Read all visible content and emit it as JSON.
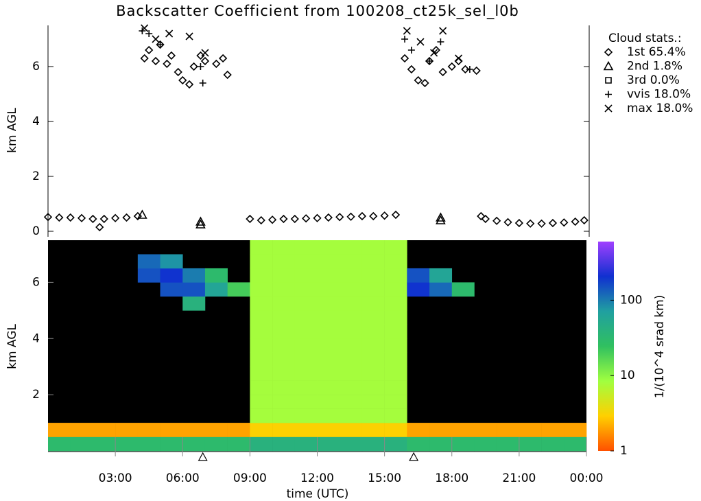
{
  "chart_data": [
    {
      "type": "scatter",
      "title": "Backscatter Coefficient from 100208_ct25k_sel_l0b",
      "ylabel": "km AGL",
      "legend_title": "Cloud stats.:",
      "xlim": [
        0,
        24
      ],
      "ylim": [
        0,
        7.5
      ],
      "yticks": [
        0,
        2,
        4,
        6
      ],
      "series": [
        {
          "name": "1st 65.4%",
          "marker": "diamond",
          "color": "#000000",
          "x": [
            0,
            0.5,
            1,
            1.5,
            2,
            2.3,
            2.5,
            3,
            3.5,
            4,
            4.3,
            4.5,
            4.8,
            5.0,
            5.3,
            5.5,
            5.8,
            6.0,
            6.3,
            6.5,
            6.8,
            7.0,
            7.5,
            7.8,
            8.0,
            9,
            9.5,
            10,
            10.5,
            11,
            11.5,
            12,
            12.5,
            13,
            13.5,
            14,
            14.5,
            15,
            15.5,
            15.9,
            16.2,
            16.5,
            16.8,
            17.0,
            17.3,
            17.6,
            18.0,
            18.3,
            18.6,
            19.1,
            19.3,
            19.5,
            20,
            20.5,
            21,
            21.5,
            22,
            22.5,
            23,
            23.5,
            23.9
          ],
          "values": [
            0.52,
            0.5,
            0.5,
            0.48,
            0.45,
            0.15,
            0.45,
            0.48,
            0.5,
            0.55,
            6.3,
            6.6,
            6.2,
            6.8,
            6.1,
            6.4,
            5.8,
            5.5,
            5.35,
            6.0,
            6.4,
            6.2,
            6.1,
            6.3,
            5.7,
            0.45,
            0.4,
            0.42,
            0.45,
            0.45,
            0.47,
            0.48,
            0.5,
            0.52,
            0.53,
            0.55,
            0.55,
            0.57,
            0.6,
            6.3,
            5.9,
            5.5,
            5.4,
            6.2,
            6.6,
            5.8,
            6.0,
            6.2,
            5.9,
            5.85,
            0.55,
            0.45,
            0.38,
            0.33,
            0.3,
            0.28,
            0.28,
            0.3,
            0.32,
            0.35,
            0.4
          ]
        },
        {
          "name": "2nd  1.8%",
          "marker": "triangle",
          "color": "#000000",
          "x": [
            4.2,
            6.8,
            6.8,
            17.5,
            17.5
          ],
          "values": [
            0.6,
            0.25,
            0.35,
            0.4,
            0.5
          ]
        },
        {
          "name": "3rd  0.0%",
          "marker": "square",
          "color": "#000000",
          "x": [],
          "values": []
        },
        {
          "name": "vvis 18.0%",
          "marker": "plus",
          "color": "#000000",
          "x": [
            4.2,
            4.5,
            5.0,
            6.8,
            6.9,
            15.9,
            16.2,
            17.0,
            17.5,
            18.8
          ],
          "values": [
            7.3,
            7.2,
            6.8,
            6.0,
            5.4,
            7.0,
            6.6,
            6.2,
            6.9,
            5.9
          ]
        },
        {
          "name": "max 18.0%",
          "marker": "cross",
          "color": "#000000",
          "x": [
            4.3,
            4.8,
            5.4,
            6.3,
            7.0,
            16.0,
            16.6,
            17.2,
            17.6,
            18.3
          ],
          "values": [
            7.4,
            7.0,
            7.2,
            7.1,
            6.5,
            7.3,
            6.9,
            6.5,
            7.3,
            6.3
          ]
        }
      ]
    },
    {
      "type": "heatmap",
      "xlabel": "time (UTC)",
      "ylabel": "km AGL",
      "xlim": [
        0,
        24
      ],
      "ylim": [
        0,
        7.5
      ],
      "xticks": [
        {
          "value": 3,
          "label": "03:00"
        },
        {
          "value": 6,
          "label": "06:00"
        },
        {
          "value": 9,
          "label": "09:00"
        },
        {
          "value": 12,
          "label": "12:00"
        },
        {
          "value": 15,
          "label": "15:00"
        },
        {
          "value": 18,
          "label": "18:00"
        },
        {
          "value": 21,
          "label": "21:00"
        },
        {
          "value": 24,
          "label": "00:00"
        }
      ],
      "yticks": [
        2,
        4,
        6
      ],
      "x_edges": [
        0,
        1,
        2,
        3,
        4,
        5,
        6,
        7,
        8,
        9,
        10,
        11,
        12,
        13,
        14,
        15,
        16,
        17,
        18,
        19,
        20,
        21,
        22,
        23,
        24
      ],
      "y_edges": [
        0,
        0.5,
        1,
        1.5,
        2,
        2.5,
        3,
        3.5,
        4,
        4.5,
        5,
        5.5,
        6,
        6.5,
        7,
        7.5
      ],
      "z": [
        [
          30,
          2,
          null,
          null,
          null,
          null,
          null,
          null,
          null,
          null,
          null,
          null,
          null,
          null,
          null
        ],
        [
          30,
          2,
          null,
          null,
          null,
          null,
          null,
          null,
          null,
          null,
          null,
          null,
          null,
          null,
          null
        ],
        [
          30,
          2,
          null,
          null,
          null,
          null,
          null,
          null,
          null,
          null,
          null,
          null,
          null,
          null,
          null
        ],
        [
          30,
          2,
          null,
          null,
          null,
          null,
          null,
          null,
          null,
          null,
          null,
          null,
          null,
          null,
          null
        ],
        [
          30,
          2,
          null,
          null,
          null,
          null,
          null,
          null,
          null,
          null,
          null,
          null,
          150,
          120,
          null
        ],
        [
          30,
          2,
          null,
          null,
          null,
          null,
          null,
          null,
          null,
          null,
          null,
          150,
          200,
          80,
          null
        ],
        [
          30,
          2,
          null,
          null,
          null,
          null,
          null,
          null,
          null,
          null,
          40,
          150,
          100,
          null,
          null
        ],
        [
          30,
          2,
          null,
          null,
          null,
          null,
          null,
          null,
          null,
          null,
          null,
          60,
          30,
          null,
          null
        ],
        [
          30,
          2,
          null,
          null,
          null,
          null,
          null,
          null,
          null,
          null,
          null,
          20,
          null,
          null,
          null
        ],
        [
          40,
          3,
          8,
          8,
          8,
          8,
          8,
          8,
          8,
          8,
          8,
          8,
          8,
          8,
          8
        ],
        [
          40,
          3,
          8,
          8,
          8,
          8,
          8,
          8,
          8,
          8,
          8,
          8,
          8,
          8,
          8
        ],
        [
          40,
          3,
          8,
          8,
          8,
          8,
          8,
          8,
          8,
          8,
          8,
          8,
          8,
          8,
          8
        ],
        [
          40,
          3,
          8,
          8,
          8,
          8,
          8,
          8,
          8,
          8,
          8,
          8,
          8,
          8,
          8
        ],
        [
          40,
          3,
          8,
          8,
          8,
          8,
          8,
          8,
          8,
          8,
          8,
          8,
          8,
          8,
          8
        ],
        [
          40,
          3,
          8,
          8,
          8,
          8,
          8,
          8,
          8,
          8,
          8,
          8,
          8,
          8,
          8
        ],
        [
          40,
          3,
          8,
          8,
          8,
          8,
          8,
          8,
          8,
          8,
          8,
          8,
          8,
          8,
          8
        ],
        [
          30,
          2,
          null,
          null,
          null,
          null,
          null,
          null,
          null,
          null,
          null,
          200,
          150,
          null,
          null
        ],
        [
          30,
          2,
          null,
          null,
          null,
          null,
          null,
          null,
          null,
          null,
          null,
          120,
          60,
          null,
          null
        ],
        [
          30,
          2,
          null,
          null,
          null,
          null,
          null,
          null,
          null,
          null,
          null,
          30,
          null,
          null,
          null
        ],
        [
          30,
          2,
          null,
          null,
          null,
          null,
          null,
          null,
          null,
          null,
          null,
          null,
          null,
          null,
          null
        ],
        [
          30,
          2,
          null,
          null,
          null,
          null,
          null,
          null,
          null,
          null,
          null,
          null,
          null,
          null,
          null
        ],
        [
          30,
          2,
          null,
          null,
          null,
          null,
          null,
          null,
          null,
          null,
          null,
          null,
          null,
          null,
          null
        ],
        [
          30,
          2,
          null,
          null,
          null,
          null,
          null,
          null,
          null,
          null,
          null,
          null,
          null,
          null,
          null
        ],
        [
          30,
          2,
          null,
          null,
          null,
          null,
          null,
          null,
          null,
          null,
          null,
          null,
          null,
          null,
          null
        ]
      ],
      "zlim": [
        1,
        600
      ],
      "zticks": [
        1,
        10,
        100
      ],
      "zlog": true,
      "zlabel": "1/(10^4 srad km)",
      "colormap": [
        "#ff5000",
        "#ffd000",
        "#a0ff40",
        "#30c060",
        "#20a0a0",
        "#1030d0",
        "#a040ff"
      ],
      "background": "#000000",
      "event_times": [
        6.9,
        16.3
      ]
    }
  ]
}
